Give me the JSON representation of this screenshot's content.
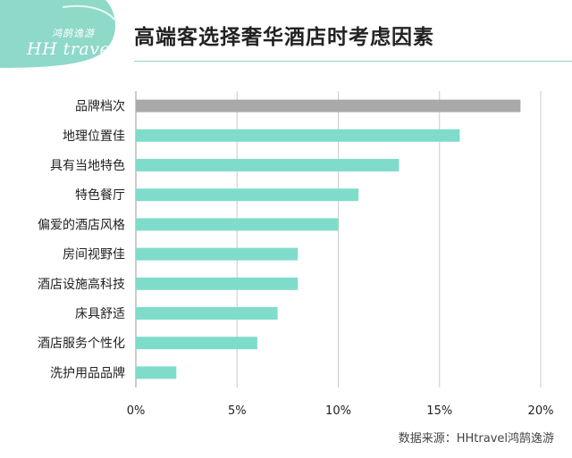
{
  "header": {
    "title": "高端客选择奢华酒店时考虑因素",
    "logo_small": "鸿鹄逸游",
    "logo_text": "HH travel"
  },
  "footer": {
    "source": "数据来源：HHtravel鸿鹄逸游"
  },
  "colors": {
    "bar_default": "#7fdccb",
    "bar_highlight": "#a9a9a9",
    "logo_bg": "#8fd9c9",
    "grid": "#cccccc",
    "axis": "#999999"
  },
  "chart_data": {
    "type": "bar",
    "orientation": "horizontal",
    "title": "高端客选择奢华酒店时考虑因素",
    "categories": [
      "品牌档次",
      "地理位置佳",
      "具有当地特色",
      "特色餐厅",
      "偏爱的酒店风格",
      "房间视野佳",
      "酒店设施高科技",
      "床具舒适",
      "酒店服务个性化",
      "洗护用品品牌"
    ],
    "values": [
      19,
      16,
      13,
      11,
      10,
      8,
      8,
      7,
      6,
      2
    ],
    "highlight_index": 0,
    "xlim": [
      0,
      20
    ],
    "xticks": [
      "0%",
      "5%",
      "10%",
      "15%",
      "20%"
    ],
    "grid": true,
    "legend": "none"
  }
}
